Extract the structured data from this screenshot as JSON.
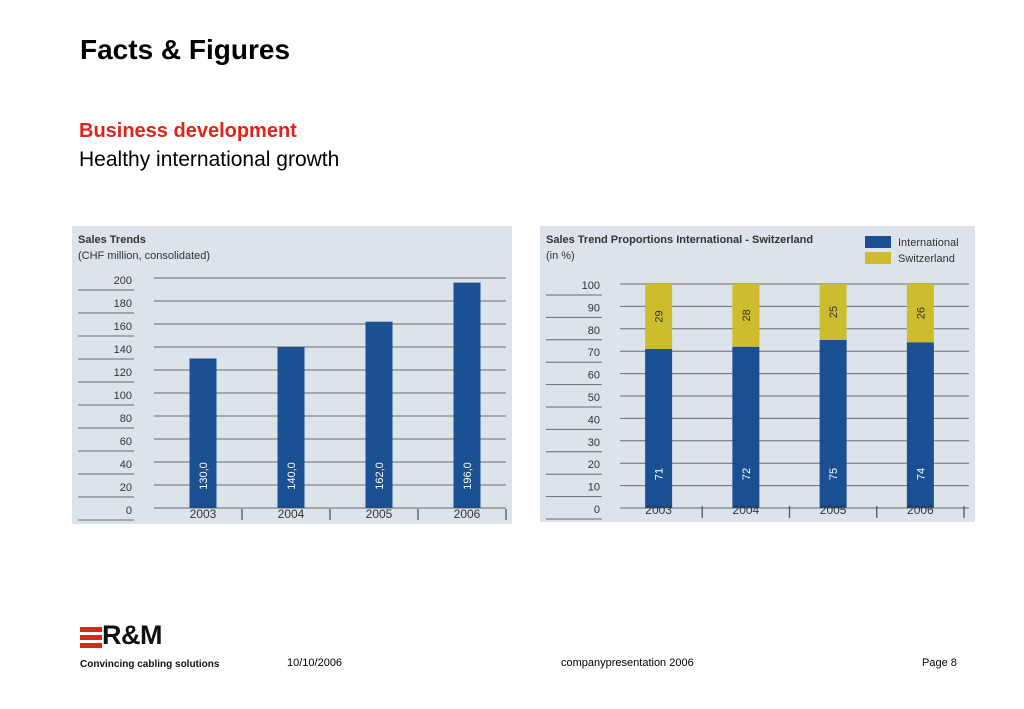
{
  "page": {
    "title": "Facts & Figures",
    "section_title": "Business development",
    "section_subtitle": "Healthy international growth"
  },
  "colors": {
    "accent": "#e2231a",
    "international": "#1a4f91",
    "switzerland": "#cdbd2e",
    "panel": "#dde3ea"
  },
  "footer": {
    "logo_text": "R&M",
    "tagline": "Convincing cabling solutions",
    "date": "10/10/2006",
    "presentation": "companypresentation 2006",
    "page": "Page 8"
  },
  "chart_data": [
    {
      "type": "bar",
      "title": "Sales Trends",
      "subtitle": "(CHF million, consolidated)",
      "categories": [
        "2003",
        "2004",
        "2005",
        "2006"
      ],
      "values": [
        130.0,
        140.0,
        162.0,
        196.0
      ],
      "value_labels": [
        "130,0",
        "140,0",
        "162,0",
        "196,0"
      ],
      "yticks": [
        "0",
        "20",
        "40",
        "60",
        "80",
        "100",
        "120",
        "140",
        "160",
        "180",
        "200"
      ],
      "ylim": [
        0,
        200
      ],
      "grid": true,
      "xlabel": "",
      "ylabel": ""
    },
    {
      "type": "bar",
      "stacked": true,
      "title": "Sales Trend Proportions International - Switzerland",
      "subtitle": "(in %)",
      "categories": [
        "2003",
        "2004",
        "2005",
        "2006"
      ],
      "series": [
        {
          "name": "International",
          "values": [
            71,
            72,
            75,
            74
          ]
        },
        {
          "name": "Switzerland",
          "values": [
            29,
            28,
            25,
            26
          ]
        }
      ],
      "yticks": [
        "0",
        "10",
        "20",
        "30",
        "40",
        "50",
        "60",
        "70",
        "80",
        "90",
        "100"
      ],
      "ylim": [
        0,
        100
      ],
      "grid": true,
      "legend": "top-right",
      "xlabel": "",
      "ylabel": ""
    }
  ]
}
